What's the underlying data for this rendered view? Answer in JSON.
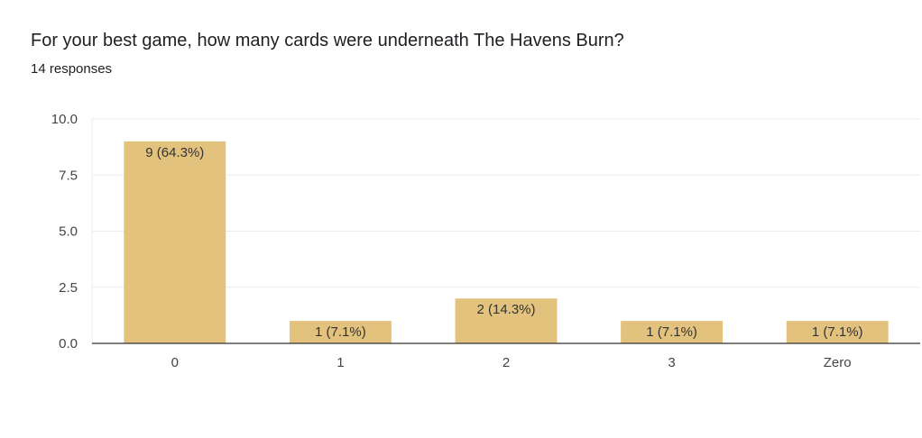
{
  "question": {
    "title": "For your best game, how many cards were underneath The Havens Burn?",
    "responses": "14 responses"
  },
  "colors": {
    "bar": "#e3c27d",
    "grid": "#ebebeb",
    "axis": "#333333"
  },
  "chart_data": {
    "type": "bar",
    "categories": [
      "0",
      "1",
      "2",
      "3",
      "Zero"
    ],
    "values": [
      9,
      1,
      2,
      1,
      1
    ],
    "data_labels": [
      "9 (64.3%)",
      "1 (7.1%)",
      "2 (14.3%)",
      "1 (7.1%)",
      "1 (7.1%)"
    ],
    "yticks": [
      "0.0",
      "2.5",
      "5.0",
      "7.5",
      "10.0"
    ],
    "ylim": [
      0,
      10
    ],
    "grid": true,
    "legend": "none"
  }
}
